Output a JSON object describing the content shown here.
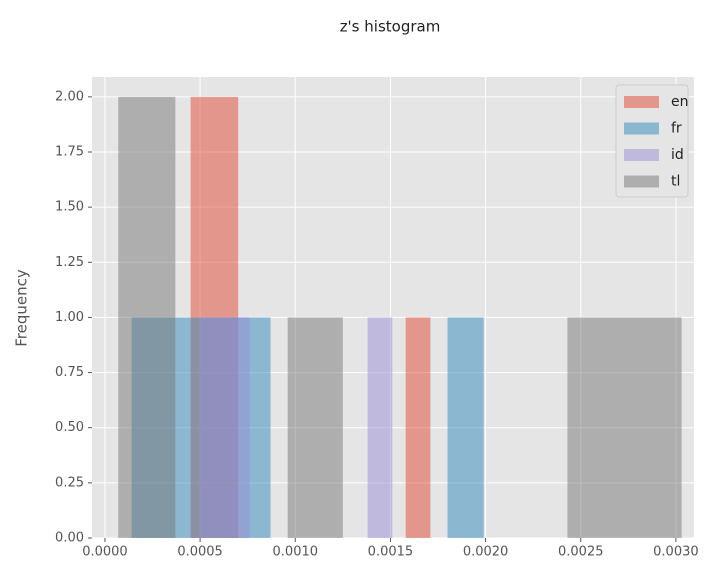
{
  "chart_data": {
    "type": "histogram",
    "title": "z's histogram",
    "ylabel": "Frequency",
    "series": [
      {
        "name": "en",
        "color": "#e24a33",
        "bins": [
          0.00045,
          0.0007,
          0.00158,
          0.00171
        ],
        "values": [
          2,
          0,
          1
        ]
      },
      {
        "name": "fr",
        "color": "#348abd",
        "bins": [
          0.00014,
          0.00037,
          0.00087,
          0.0018,
          0.00199
        ],
        "values": [
          1,
          1,
          0,
          1
        ]
      },
      {
        "name": "id",
        "color": "#988ed5",
        "bins": [
          0.0005,
          0.00076,
          0.00138,
          0.00151
        ],
        "values": [
          1,
          0,
          1
        ]
      },
      {
        "name": "tl",
        "color": "#777777",
        "bins": [
          7e-05,
          0.00037,
          0.00096,
          0.00125,
          0.00243,
          0.00303
        ],
        "values": [
          2,
          0,
          1,
          0,
          1
        ]
      }
    ],
    "xlim": [
      -6.8e-05,
      0.003095
    ],
    "xticks": [
      {
        "value": 0,
        "label": "0.0000"
      },
      {
        "value": 0.0005,
        "label": "0.0005"
      },
      {
        "value": 0.001,
        "label": "0.0010"
      },
      {
        "value": 0.0015,
        "label": "0.0015"
      },
      {
        "value": 0.002,
        "label": "0.0020"
      },
      {
        "value": 0.0025,
        "label": "0.0025"
      },
      {
        "value": 0.003,
        "label": "0.0030"
      }
    ],
    "ylim": [
      0,
      2.09
    ],
    "yticks": [
      {
        "value": 0,
        "label": "0.00"
      },
      {
        "value": 0.25,
        "label": "0.25"
      },
      {
        "value": 0.5,
        "label": "0.50"
      },
      {
        "value": 0.75,
        "label": "0.75"
      },
      {
        "value": 1,
        "label": "1.00"
      },
      {
        "value": 1.25,
        "label": "1.25"
      },
      {
        "value": 1.5,
        "label": "1.50"
      },
      {
        "value": 1.75,
        "label": "1.75"
      },
      {
        "value": 2,
        "label": "2.00"
      }
    ],
    "grid": true,
    "legend": "upper right",
    "opacity": 0.5
  }
}
